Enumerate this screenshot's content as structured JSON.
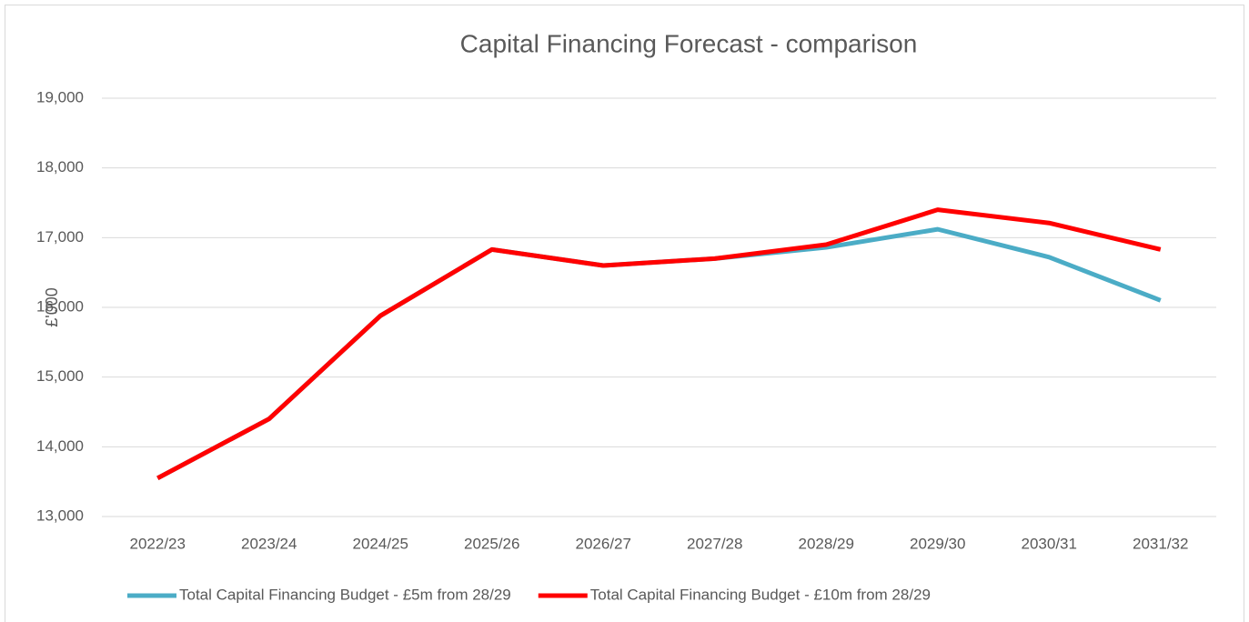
{
  "chart_data": {
    "type": "line",
    "title": "Capital Financing Forecast - comparison",
    "ylabel": "£'000",
    "categories": [
      "2022/23",
      "2023/24",
      "2024/25",
      "2025/26",
      "2026/27",
      "2027/28",
      "2028/29",
      "2029/30",
      "2030/31",
      "2031/32"
    ],
    "series": [
      {
        "name": "Total Capital Financing Budget - £5m from 28/29",
        "color": "#4bacc6",
        "values": [
          13550,
          14400,
          15880,
          16830,
          16600,
          16700,
          16860,
          17120,
          16720,
          16100
        ]
      },
      {
        "name": "Total Capital Financing Budget - £10m from 28/29",
        "color": "#ff0000",
        "values": [
          13550,
          14400,
          15880,
          16830,
          16600,
          16700,
          16900,
          17400,
          17210,
          16830
        ]
      }
    ],
    "ylim": [
      13000,
      19000
    ],
    "yticks": [
      {
        "value": 13000,
        "label": "13,000"
      },
      {
        "value": 14000,
        "label": "14,000"
      },
      {
        "value": 15000,
        "label": "15,000"
      },
      {
        "value": 16000,
        "label": "16,000"
      },
      {
        "value": 17000,
        "label": "17,000"
      },
      {
        "value": 18000,
        "label": "18,000"
      },
      {
        "value": 19000,
        "label": "19,000"
      }
    ],
    "grid": true,
    "legend": "bottom"
  }
}
